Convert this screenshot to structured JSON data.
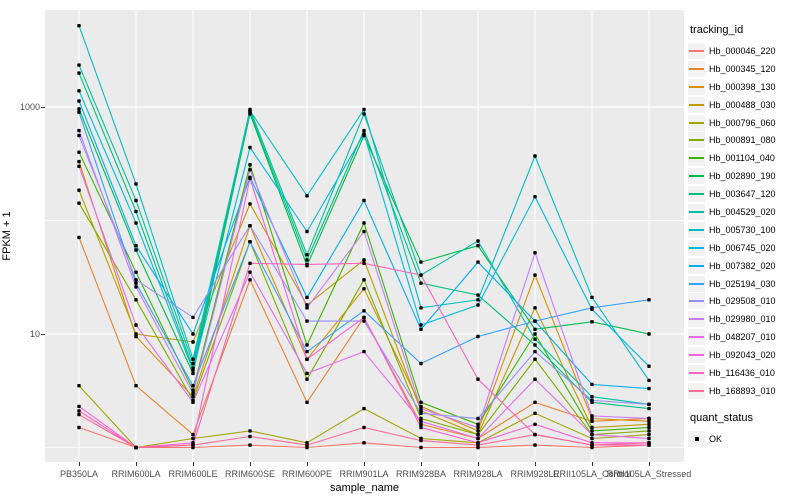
{
  "figure": {
    "x_axis_title": "sample_name",
    "y_axis_title": "FPKM + 1",
    "legend_tracking_title": "tracking_id",
    "legend_quant_title": "quant_status",
    "quant_ok_label": "OK",
    "panel_bg": "#EBEBEB",
    "gridline_color": "#FFFFFF",
    "tick_label_color": "#4D4D4D",
    "point_color": "#000000"
  },
  "chart_data": {
    "type": "line",
    "scale": "log10",
    "title": "",
    "xlabel": "sample_name",
    "ylabel": "FPKM + 1",
    "legend_position": "right",
    "grid": true,
    "y_major_ticks": [
      10,
      1000
    ],
    "y_minor_gridlines": [
      1,
      100
    ],
    "ylim": [
      0.75,
      7000
    ],
    "point_marker": "black-square",
    "categories": [
      "PB350LA",
      "RRIM600LA",
      "RRIM600LE",
      "RRIM600SE",
      "RRIM600PE",
      "RRIM901LA",
      "RRIM928BA",
      "RRIM928LA",
      "RRIM928LE",
      "RRII105LA_Control",
      "RRII105LA_Stressed"
    ],
    "series": [
      {
        "name": "Hb_000046_220",
        "color": "#F8766D",
        "values": [
          1.5,
          1,
          1,
          1.05,
          1,
          1.1,
          1,
          1,
          1.05,
          1,
          1.05
        ]
      },
      {
        "name": "Hb_000345_120",
        "color": "#EA8331",
        "values": [
          71,
          3.5,
          1.3,
          30,
          2.5,
          14,
          1.6,
          1.2,
          2.5,
          1.7,
          1.8
        ]
      },
      {
        "name": "Hb_000398_130",
        "color": "#D89000",
        "values": [
          330,
          9.5,
          2.8,
          90,
          6,
          25,
          2.3,
          1.4,
          33,
          1.8,
          1.7
        ]
      },
      {
        "name": "Hb_000488_030",
        "color": "#C09B00",
        "values": [
          185,
          10,
          8.5,
          140,
          18,
          45,
          2.1,
          1.3,
          17,
          1.5,
          1.6
        ]
      },
      {
        "name": "Hb_000796_060",
        "color": "#A3A500",
        "values": [
          3.5,
          1,
          1.2,
          1.4,
          1.1,
          2.2,
          1.2,
          1.1,
          2,
          1.2,
          1.3
        ]
      },
      {
        "name": "Hb_000891_080",
        "color": "#7CAE00",
        "values": [
          142,
          20,
          2.6,
          65,
          4,
          30,
          1.8,
          1.3,
          6,
          1.3,
          1.4
        ]
      },
      {
        "name": "Hb_001104_040",
        "color": "#39B600",
        "values": [
          400,
          35,
          3.2,
          310,
          8,
          95,
          2.5,
          1.6,
          10,
          1.4,
          1.5
        ]
      },
      {
        "name": "Hb_002890_190",
        "color": "#00BB4E",
        "values": [
          960,
          55,
          4.5,
          870,
          40,
          560,
          43,
          60,
          11,
          12.8,
          10
        ]
      },
      {
        "name": "Hb_003647_120",
        "color": "#00BF7D",
        "values": [
          1990,
          120,
          5,
          900,
          45,
          620,
          28,
          22,
          8,
          2.5,
          2.2
        ]
      },
      {
        "name": "Hb_004529_020",
        "color": "#00C1A3",
        "values": [
          2340,
          150,
          5.5,
          950,
          50,
          870,
          33,
          66,
          9,
          2.8,
          2.4
        ]
      },
      {
        "name": "Hb_005730_100",
        "color": "#00BFC4",
        "values": [
          5200,
          210,
          6,
          930,
          165,
          950,
          17,
          20,
          370,
          21,
          3.9
        ]
      },
      {
        "name": "Hb_006745_020",
        "color": "#00BAE0",
        "values": [
          1390,
          95,
          4.8,
          440,
          80,
          580,
          12,
          18,
          162,
          16.5,
          5.2
        ]
      },
      {
        "name": "Hb_007382_020",
        "color": "#00B0F6",
        "values": [
          1130,
          60,
          10,
          240,
          21,
          150,
          11,
          43,
          13,
          3.6,
          3.3
        ]
      },
      {
        "name": "Hb_025194_030",
        "color": "#35A2FF",
        "values": [
          900,
          28,
          3.5,
          65,
          7,
          16,
          5.5,
          9.5,
          13,
          17,
          20
        ]
      },
      {
        "name": "Hb_029508_010",
        "color": "#9590FF",
        "values": [
          560,
          30,
          14,
          90,
          13,
          13,
          2,
          1.8,
          7,
          2.6,
          2.4
        ]
      },
      {
        "name": "Hb_029980_010",
        "color": "#C77CFF",
        "values": [
          620,
          26,
          3,
          280,
          17,
          80,
          2.2,
          1.5,
          52,
          1.9,
          1.8
        ]
      },
      {
        "name": "Hb_048207_010",
        "color": "#E76BF3",
        "values": [
          300,
          12,
          2.5,
          35,
          4.5,
          7,
          1.7,
          1.2,
          4,
          1.3,
          1.2
        ]
      },
      {
        "name": "Hb_092043_020",
        "color": "#FA62DB",
        "values": [
          2.3,
          1,
          1.1,
          235,
          6,
          14,
          1.5,
          1.1,
          1.6,
          1.1,
          1.1
        ]
      },
      {
        "name": "Hb_116436_010",
        "color": "#FF62BC",
        "values": [
          2.1,
          1,
          1.05,
          42,
          41,
          42,
          33,
          4,
          1.3,
          1.05,
          1.05
        ]
      },
      {
        "name": "Hb_168893_010",
        "color": "#FF6A98",
        "values": [
          1.95,
          1,
          1.05,
          1.25,
          1.05,
          1.5,
          1.15,
          1.05,
          1.3,
          1.05,
          1.1
        ]
      }
    ],
    "quant_status": {
      "title": "quant_status",
      "entries": [
        {
          "label": "OK",
          "marker": "black-square"
        }
      ]
    }
  }
}
